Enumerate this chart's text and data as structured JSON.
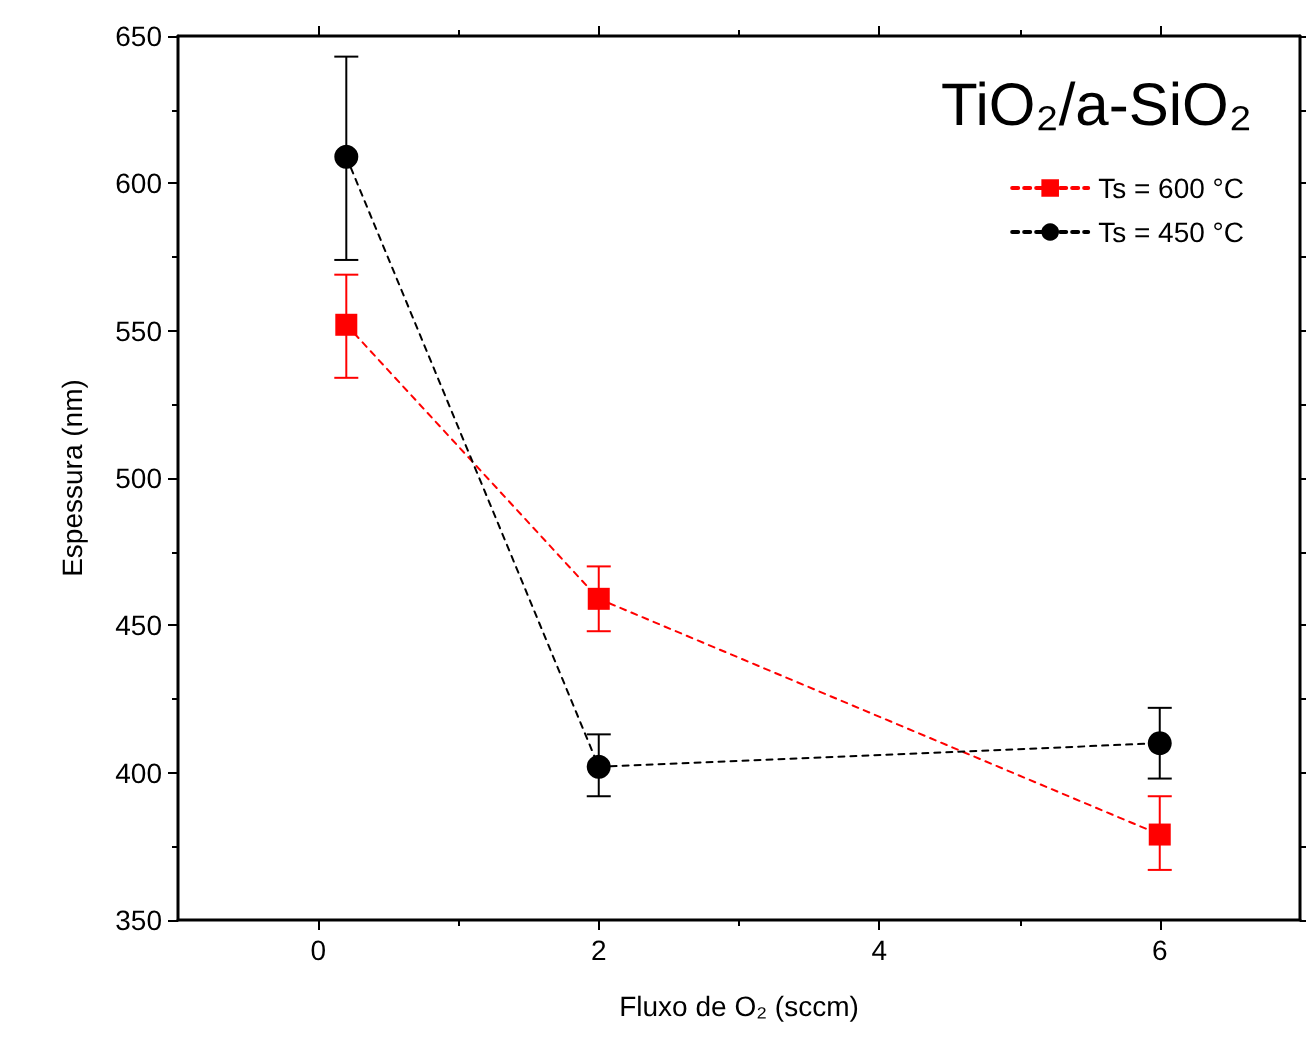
{
  "chart_data": {
    "type": "line",
    "xlabel": "Fluxo de O₂ (sccm)",
    "ylabel": "Espessura (nm)",
    "annotations": [
      "TiO₂/a-SiO₂"
    ],
    "x": [
      0.2,
      2,
      6
    ],
    "series": [
      {
        "name": "Ts = 600 °C",
        "color": "#ff0000",
        "marker": "square",
        "values": [
          552,
          459,
          379
        ],
        "errors": [
          [
            534,
            569
          ],
          [
            448,
            470
          ],
          [
            367,
            392
          ]
        ]
      },
      {
        "name": "Ts = 450 °C",
        "color": "#000000",
        "marker": "circle",
        "values": [
          609,
          402,
          410
        ],
        "errors": [
          [
            574,
            643
          ],
          [
            392,
            413
          ],
          [
            398,
            422
          ]
        ]
      }
    ],
    "line_style": "dashed",
    "xlim": [
      -1,
      7
    ],
    "xticks": [
      0,
      2,
      4,
      6
    ],
    "ylim": [
      350,
      650
    ],
    "yticks": [
      350,
      400,
      450,
      500,
      550,
      600,
      650
    ],
    "grid": false,
    "legend": "top right"
  }
}
